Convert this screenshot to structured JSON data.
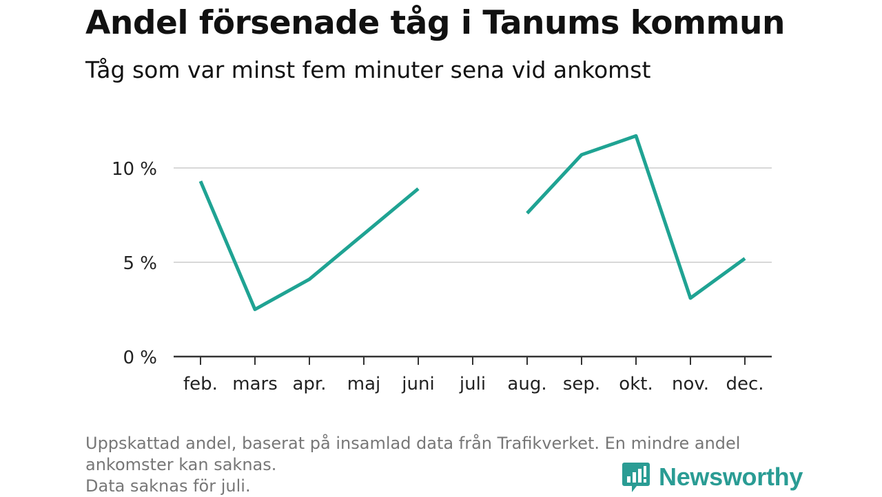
{
  "chart_data": {
    "type": "line",
    "title": "Andel försenade tåg i Tanums kommun",
    "subtitle": "Tåg som var minst fem minuter sena vid ankomst",
    "categories": [
      "feb.",
      "mars",
      "apr.",
      "maj",
      "juni",
      "juli",
      "aug.",
      "sep.",
      "okt.",
      "nov.",
      "dec."
    ],
    "series": [
      {
        "values": [
          9.3,
          2.5,
          4.1,
          6.5,
          8.9,
          null,
          7.6,
          10.7,
          11.7,
          3.1,
          5.2
        ],
        "color": "#1fa393"
      }
    ],
    "y_ticks": [
      {
        "value": 0,
        "label": "0 %"
      },
      {
        "value": 5,
        "label": "5 %"
      },
      {
        "value": 10,
        "label": "10 %"
      }
    ],
    "ylim": [
      0,
      12.5
    ],
    "grid": true,
    "legend": "none"
  },
  "footnote": {
    "lines": [
      "Uppskattad andel, baserat på insamlad data från Trafikverket. En mindre andel",
      "ankomster kan saknas.",
      "Data saknas för juli."
    ]
  },
  "brand": {
    "name": "Newsworthy",
    "logo_icon": "bar-chart-speech-bubble-icon",
    "color": "#2a9c94"
  }
}
